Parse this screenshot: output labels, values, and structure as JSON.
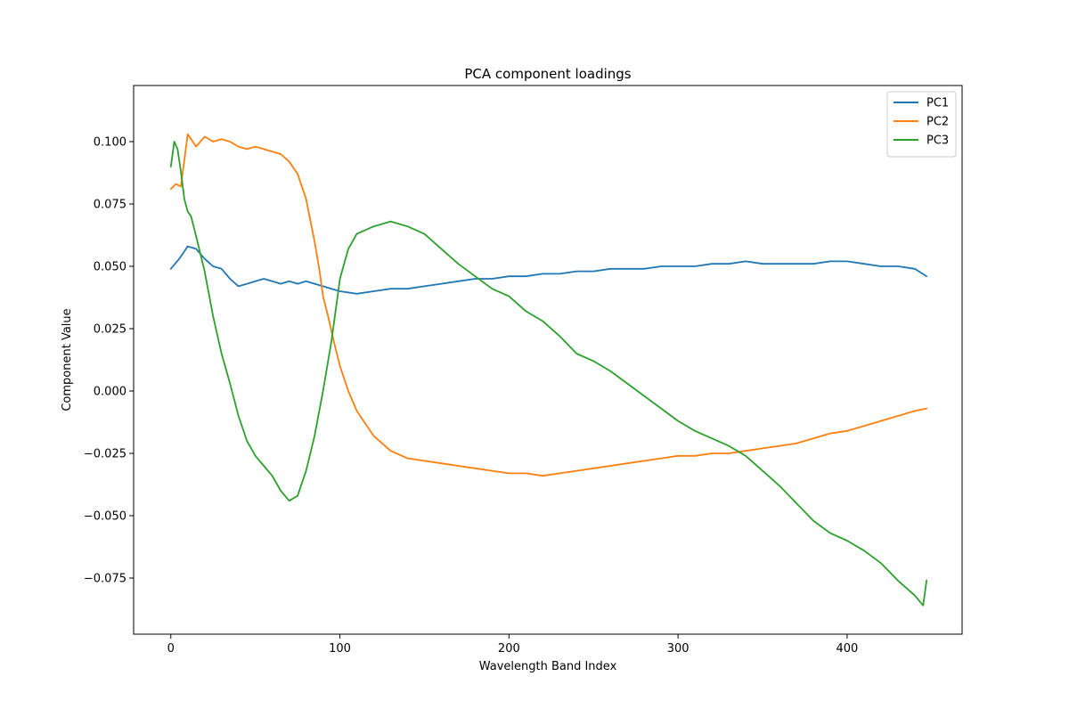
{
  "chart_data": {
    "type": "line",
    "title": "PCA component loadings",
    "xlabel": "Wavelength Band Index",
    "ylabel": "Component Value",
    "xlim": [
      -22,
      468
    ],
    "ylim": [
      -0.0975,
      0.1225
    ],
    "xticks": [
      0,
      100,
      200,
      300,
      400
    ],
    "xtick_labels": [
      "0",
      "100",
      "200",
      "300",
      "400"
    ],
    "yticks": [
      -0.075,
      -0.05,
      -0.025,
      0.0,
      0.025,
      0.05,
      0.075,
      0.1
    ],
    "ytick_labels": [
      "−0.075",
      "−0.050",
      "−0.025",
      "0.000",
      "0.025",
      "0.050",
      "0.075",
      "0.100"
    ],
    "grid": false,
    "legend_position": "top-right",
    "series": [
      {
        "name": "PC1",
        "color": "#1f77b4",
        "x": [
          0,
          5,
          10,
          15,
          20,
          25,
          30,
          35,
          40,
          45,
          50,
          55,
          60,
          65,
          70,
          75,
          80,
          85,
          90,
          95,
          100,
          110,
          120,
          130,
          140,
          150,
          160,
          170,
          180,
          190,
          200,
          210,
          220,
          230,
          240,
          250,
          260,
          270,
          280,
          290,
          300,
          310,
          320,
          330,
          340,
          350,
          360,
          370,
          380,
          390,
          400,
          410,
          420,
          430,
          440,
          447
        ],
        "y": [
          0.049,
          0.053,
          0.058,
          0.057,
          0.053,
          0.05,
          0.049,
          0.045,
          0.042,
          0.043,
          0.044,
          0.045,
          0.044,
          0.043,
          0.044,
          0.043,
          0.044,
          0.043,
          0.042,
          0.041,
          0.04,
          0.039,
          0.04,
          0.041,
          0.041,
          0.042,
          0.043,
          0.044,
          0.045,
          0.045,
          0.046,
          0.046,
          0.047,
          0.047,
          0.048,
          0.048,
          0.049,
          0.049,
          0.049,
          0.05,
          0.05,
          0.05,
          0.051,
          0.051,
          0.052,
          0.051,
          0.051,
          0.051,
          0.051,
          0.052,
          0.052,
          0.051,
          0.05,
          0.05,
          0.049,
          0.046
        ]
      },
      {
        "name": "PC2",
        "color": "#ff7f0e",
        "x": [
          0,
          3,
          6,
          10,
          15,
          20,
          25,
          30,
          35,
          40,
          45,
          50,
          55,
          60,
          65,
          70,
          75,
          80,
          85,
          88,
          90,
          93,
          96,
          100,
          105,
          110,
          115,
          120,
          130,
          140,
          150,
          160,
          170,
          180,
          190,
          200,
          210,
          220,
          230,
          240,
          250,
          260,
          270,
          280,
          290,
          300,
          310,
          320,
          330,
          340,
          350,
          360,
          370,
          380,
          390,
          400,
          410,
          420,
          430,
          440,
          447
        ],
        "y": [
          0.081,
          0.083,
          0.082,
          0.103,
          0.098,
          0.102,
          0.1,
          0.101,
          0.1,
          0.098,
          0.097,
          0.098,
          0.097,
          0.096,
          0.095,
          0.092,
          0.087,
          0.077,
          0.06,
          0.048,
          0.038,
          0.03,
          0.021,
          0.01,
          0.0,
          -0.008,
          -0.013,
          -0.018,
          -0.024,
          -0.027,
          -0.028,
          -0.029,
          -0.03,
          -0.031,
          -0.032,
          -0.033,
          -0.033,
          -0.034,
          -0.033,
          -0.032,
          -0.031,
          -0.03,
          -0.029,
          -0.028,
          -0.027,
          -0.026,
          -0.026,
          -0.025,
          -0.025,
          -0.024,
          -0.023,
          -0.022,
          -0.021,
          -0.019,
          -0.017,
          -0.016,
          -0.014,
          -0.012,
          -0.01,
          -0.008,
          -0.007
        ]
      },
      {
        "name": "PC3",
        "color": "#2ca02c",
        "x": [
          0,
          2,
          4,
          6,
          8,
          10,
          12,
          15,
          20,
          25,
          30,
          35,
          40,
          45,
          50,
          55,
          60,
          65,
          70,
          75,
          80,
          85,
          90,
          95,
          100,
          105,
          110,
          120,
          130,
          140,
          150,
          160,
          170,
          180,
          190,
          200,
          210,
          220,
          230,
          240,
          250,
          260,
          270,
          280,
          290,
          300,
          310,
          320,
          330,
          340,
          350,
          360,
          370,
          380,
          390,
          400,
          410,
          420,
          430,
          440,
          445,
          447
        ],
        "y": [
          0.09,
          0.1,
          0.097,
          0.088,
          0.077,
          0.072,
          0.07,
          0.062,
          0.048,
          0.03,
          0.015,
          0.003,
          -0.01,
          -0.02,
          -0.026,
          -0.03,
          -0.034,
          -0.04,
          -0.044,
          -0.042,
          -0.032,
          -0.018,
          0.0,
          0.02,
          0.045,
          0.057,
          0.063,
          0.066,
          0.068,
          0.066,
          0.063,
          0.057,
          0.051,
          0.046,
          0.041,
          0.038,
          0.032,
          0.028,
          0.022,
          0.015,
          0.012,
          0.008,
          0.003,
          -0.002,
          -0.007,
          -0.012,
          -0.016,
          -0.019,
          -0.022,
          -0.026,
          -0.032,
          -0.038,
          -0.045,
          -0.052,
          -0.057,
          -0.06,
          -0.064,
          -0.069,
          -0.076,
          -0.082,
          -0.086,
          -0.076
        ]
      }
    ]
  }
}
